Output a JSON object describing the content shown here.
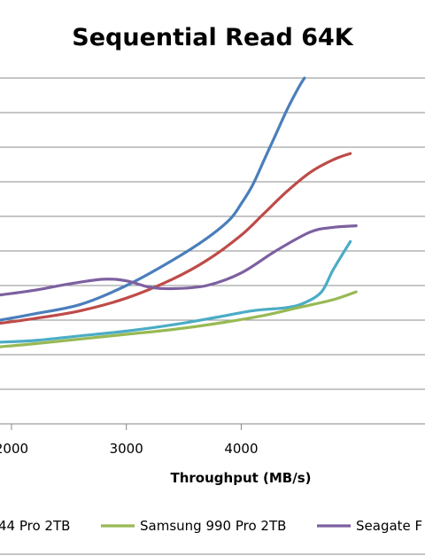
{
  "chart_data": {
    "type": "line",
    "title": "Sequential Read 64K",
    "xlabel": "Throughput  (MB/s)",
    "ylabel": "",
    "xlim": [
      1900,
      5600
    ],
    "ylim": [
      0,
      11
    ],
    "x_ticks": [
      "2000",
      "3000",
      "4000"
    ],
    "grid": "horizontal",
    "legend_position": "bottom",
    "series": [
      {
        "name": "",
        "legend_label": "",
        "color": "#4a7ebb",
        "points": [
          [
            1900,
            3.3
          ],
          [
            2200,
            3.5
          ],
          [
            2600,
            3.8
          ],
          [
            3000,
            4.4
          ],
          [
            3400,
            5.2
          ],
          [
            3700,
            5.9
          ],
          [
            3900,
            6.5
          ],
          [
            4000,
            7.0
          ],
          [
            4100,
            7.6
          ],
          [
            4200,
            8.4
          ],
          [
            4300,
            9.2
          ],
          [
            4400,
            10.0
          ],
          [
            4500,
            10.7
          ],
          [
            4550,
            11.0
          ]
        ]
      },
      {
        "name": "",
        "legend_label": "",
        "color": "#be4b48",
        "points": [
          [
            1900,
            3.2
          ],
          [
            2200,
            3.35
          ],
          [
            2600,
            3.6
          ],
          [
            3000,
            4.0
          ],
          [
            3400,
            4.6
          ],
          [
            3700,
            5.2
          ],
          [
            4000,
            6.0
          ],
          [
            4200,
            6.7
          ],
          [
            4400,
            7.4
          ],
          [
            4600,
            8.0
          ],
          [
            4800,
            8.4
          ],
          [
            4950,
            8.6
          ]
        ]
      },
      {
        "name": "",
        "legend_label": "",
        "color": "#4bacc6",
        "points": [
          [
            1900,
            2.6
          ],
          [
            2200,
            2.65
          ],
          [
            2600,
            2.8
          ],
          [
            3000,
            2.95
          ],
          [
            3400,
            3.15
          ],
          [
            3800,
            3.4
          ],
          [
            4100,
            3.6
          ],
          [
            4400,
            3.7
          ],
          [
            4550,
            3.85
          ],
          [
            4700,
            4.2
          ],
          [
            4800,
            4.9
          ],
          [
            4950,
            5.8
          ]
        ]
      },
      {
        "name": "Samsung 990 Pro 2TB",
        "legend_label": "Samsung 990 Pro 2TB",
        "color": "#98b954",
        "points": [
          [
            1900,
            2.45
          ],
          [
            2200,
            2.55
          ],
          [
            2600,
            2.7
          ],
          [
            3000,
            2.85
          ],
          [
            3400,
            3.0
          ],
          [
            3800,
            3.2
          ],
          [
            4200,
            3.45
          ],
          [
            4500,
            3.7
          ],
          [
            4800,
            3.95
          ],
          [
            5000,
            4.2
          ]
        ]
      },
      {
        "name": "",
        "legend_label": "Seagate F",
        "color": "#7d60a0",
        "points": [
          [
            1900,
            4.1
          ],
          [
            2200,
            4.25
          ],
          [
            2500,
            4.45
          ],
          [
            2800,
            4.6
          ],
          [
            3000,
            4.55
          ],
          [
            3200,
            4.35
          ],
          [
            3400,
            4.3
          ],
          [
            3700,
            4.4
          ],
          [
            4000,
            4.8
          ],
          [
            4300,
            5.5
          ],
          [
            4600,
            6.1
          ],
          [
            4800,
            6.25
          ],
          [
            5000,
            6.3
          ]
        ]
      }
    ],
    "legend_fragments": [
      {
        "text": "44 Pro 2TB",
        "color": ""
      },
      {
        "text": "Samsung 990 Pro 2TB",
        "color": "#98b954"
      },
      {
        "text": "Seagate F",
        "color": "#7d60a0"
      }
    ]
  }
}
